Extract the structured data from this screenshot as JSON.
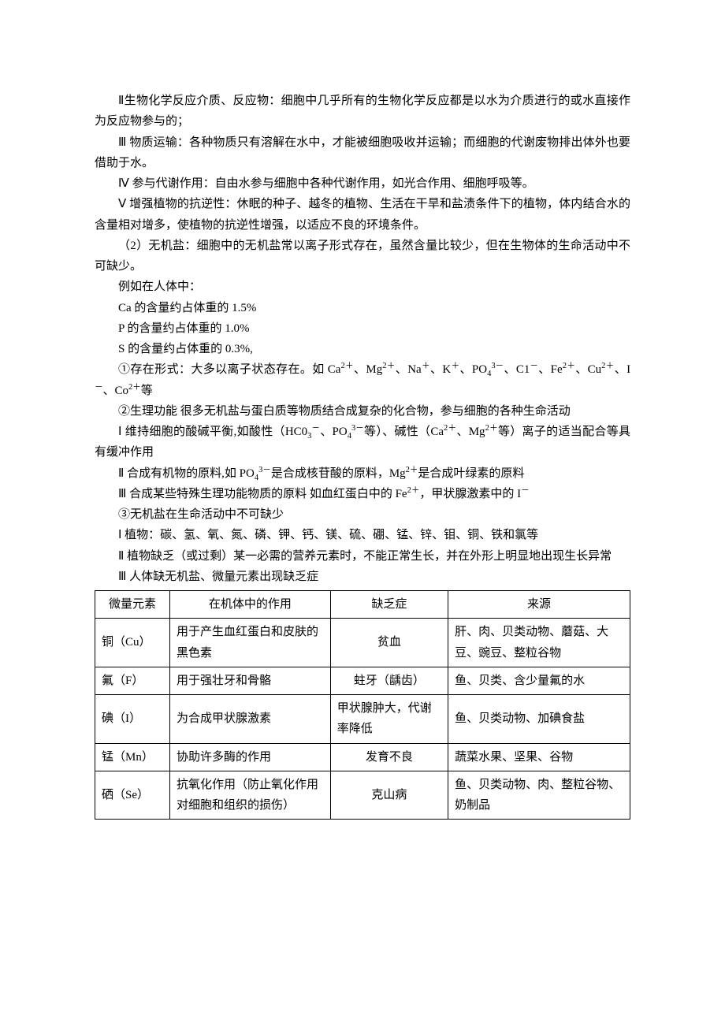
{
  "paragraphs": {
    "p1": "Ⅱ生物化学反应介质、反应物：细胞中几乎所有的生物化学反应都是以水为介质进行的或水直接作为反应物参与的；",
    "p2": "Ⅲ 物质运输：各种物质只有溶解在水中，才能被细胞吸收并运输；而细胞的代谢废物排出体外也要借助于水。",
    "p3": "Ⅳ 参与代谢作用：自由水参与细胞中各种代谢作用，如光合作用、细胞呼吸等。",
    "p4": "Ⅴ 增强植物的抗逆性：休眠的种子、越冬的植物、生活在干旱和盐渍条件下的植物，体内结合水的含量相对增多，使植物的抗逆性增强，以适应不良的环境条件。",
    "p5": "（2）无机盐：细胞中的无机盐常以离子形式存在，虽然含量比较少，但在生物体的生命活动中不可缺少。",
    "p6": "例如在人体中：",
    "p7": "Ca 的含量约占体重的 1.5%",
    "p8": "P 的含量约占体重的 1.0%",
    "p9": "S 的含量约占体重的 0.3%,",
    "p10a": "①存在形式：大多以离子状态存在。如 Ca",
    "p10b": "、Mg",
    "p10c": "、Na",
    "p10d": "、K",
    "p10e": "、PO",
    "p10f": "、C1",
    "p10g": "、Fe",
    "p10h": "、Cu",
    "p10i": "、I",
    "p10j": "、Co",
    "p10k": "等",
    "p11": "②生理功能 很多无机盐与蛋白质等物质结合成复杂的化合物，参与细胞的各种生命活动",
    "p12a": "Ⅰ 维持细胞的酸碱平衡,如酸性（HC0",
    "p12b": "、PO",
    "p12c": "等）、碱性（Ca",
    "p12d": "、Mg",
    "p12e": "等）离子的适当配合等具有缓冲作用",
    "p13a": "Ⅱ 合成有机物的原料,如 PO",
    "p13b": "是合成核苷酸的原料，Mg",
    "p13c": "是合成叶绿素的原料",
    "p14a": "Ⅲ 合成某些特殊生理功能物质的原料 如血红蛋白中的 Fe",
    "p14b": "，甲状腺激素中的 I",
    "p15": "③无机盐在生命活动中不可缺少",
    "p16": "Ⅰ 植物：碳、氢、氧、氮、磷、钾、钙、镁、硫、硼、锰、锌、钼、铜、铁和氯等",
    "p17": "Ⅱ 植物缺乏（或过剩）某一必需的营养元素时，不能正常生长，并在外形上明显地出现生长异常",
    "p18": "Ⅲ 人体缺无机盐、微量元素出现缺乏症"
  },
  "sup": {
    "p2": "2＋",
    "p1": "＋",
    "m3": "3－",
    "m1": "－"
  },
  "sub": {
    "s4": "4",
    "s3": "3"
  },
  "table": {
    "headers": [
      "微量元素",
      "在机体中的作用",
      "缺乏症",
      "来源"
    ],
    "rows": [
      [
        "铜（Cu）",
        "用于产生血红蛋白和皮肤的黑色素",
        "贫血",
        "肝、肉、贝类动物、蘑菇、大豆、豌豆、整粒谷物"
      ],
      [
        "氟（F）",
        "用于强壮牙和骨骼",
        "蛀牙（龋齿）",
        "鱼、贝类、含少量氟的水"
      ],
      [
        "碘（I）",
        "为合成甲状腺激素",
        "甲状腺肿大，代谢率降低",
        "鱼、贝类动物、加碘食盐"
      ],
      [
        "锰（Mn）",
        "协助许多酶的作用",
        "发育不良",
        "蔬菜水果、坚果、谷物"
      ],
      [
        "硒（Se）",
        "抗氧化作用（防止氧化作用对细胞和组织的损伤）",
        "克山病",
        "鱼、贝类动物、肉、整粒谷物、奶制品"
      ]
    ],
    "c3_left_rows": [
      2
    ]
  }
}
